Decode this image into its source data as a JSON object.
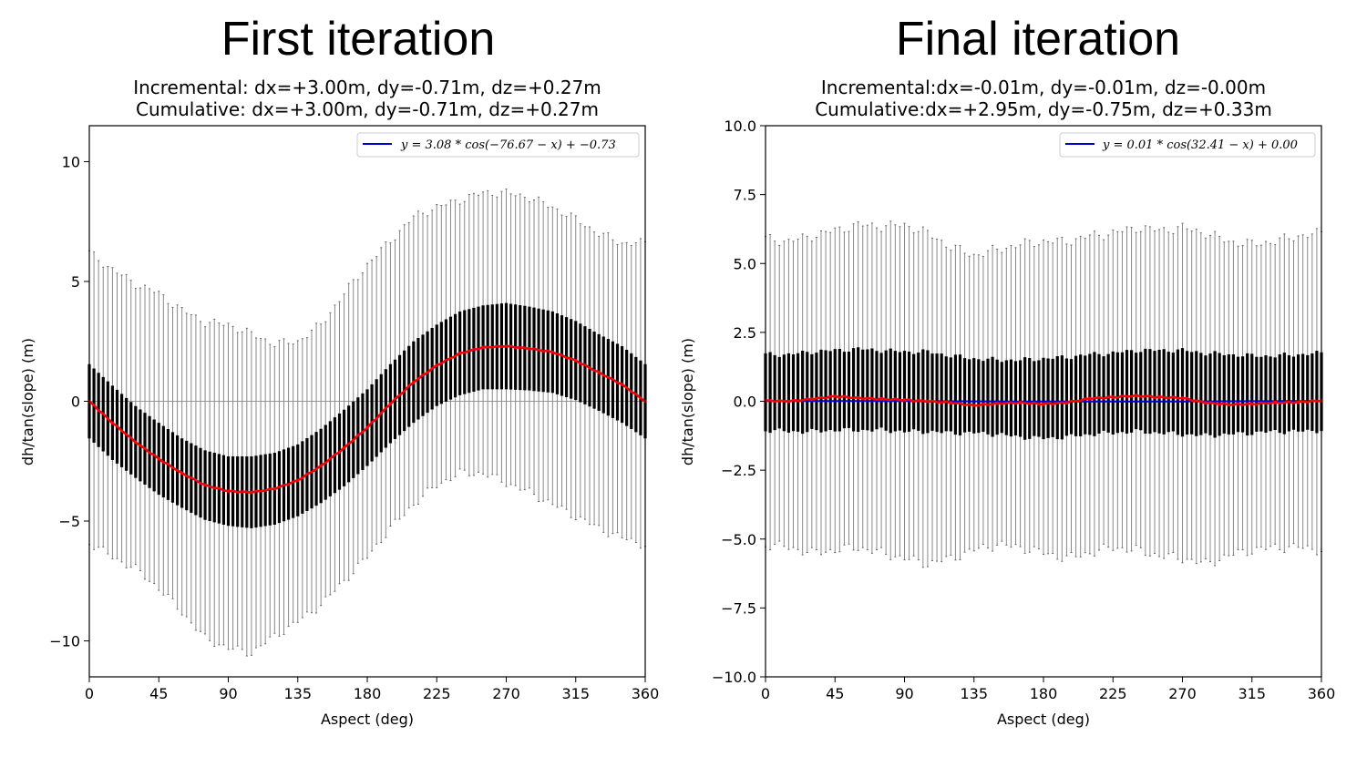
{
  "chart_data": [
    {
      "type": "errorbar-line",
      "title": "First iteration",
      "subtitle_line1": "Incremental: dx=+3.00m, dy=-0.71m, dz=+0.27m",
      "subtitle_line2": "Cumulative: dx=+3.00m, dy=-0.71m, dz=+0.27m",
      "xlabel": "Aspect (deg)",
      "ylabel": "dh/tan(slope) (m)",
      "xlim": [
        0,
        360
      ],
      "ylim": [
        -11.5,
        11.5
      ],
      "xticks": [
        "0",
        "45",
        "90",
        "135",
        "180",
        "225",
        "270",
        "315",
        "360"
      ],
      "yticks": [
        {
          "value": 10,
          "label": "10"
        },
        {
          "value": 5,
          "label": "5"
        },
        {
          "value": 0,
          "label": "0"
        },
        {
          "value": -5,
          "label": "−5"
        },
        {
          "value": -10,
          "label": "−10"
        }
      ],
      "zero_line": true,
      "legend": {
        "position": "upper right",
        "label": "y = 3.08 * cos(−76.67 − x) + −0.73",
        "color": "#0000cc"
      },
      "fit": {
        "amplitude": 3.08,
        "phase": -76.67,
        "offset": -0.73
      },
      "series": [
        {
          "name": "binned median",
          "color": "#ff0000",
          "x": [
            0,
            15,
            30,
            45,
            60,
            75,
            90,
            105,
            120,
            135,
            150,
            165,
            180,
            195,
            210,
            225,
            240,
            255,
            270,
            285,
            300,
            315,
            330,
            345,
            360
          ],
          "values": [
            0.0,
            -0.9,
            -1.7,
            -2.4,
            -3.0,
            -3.5,
            -3.75,
            -3.8,
            -3.65,
            -3.3,
            -2.7,
            -1.95,
            -1.1,
            -0.1,
            0.8,
            1.5,
            2.0,
            2.25,
            2.3,
            2.2,
            2.05,
            1.7,
            1.2,
            0.7,
            0.0
          ]
        },
        {
          "name": "iqr_half",
          "values": [
            1.55,
            1.55,
            1.5,
            1.5,
            1.45,
            1.45,
            1.45,
            1.5,
            1.5,
            1.5,
            1.55,
            1.6,
            1.6,
            1.65,
            1.7,
            1.7,
            1.75,
            1.75,
            1.8,
            1.75,
            1.7,
            1.65,
            1.6,
            1.6,
            1.55
          ]
        },
        {
          "name": "whisker_upper",
          "values": [
            6.2,
            5.5,
            4.9,
            4.5,
            3.8,
            3.3,
            3.2,
            2.8,
            2.4,
            2.5,
            3.2,
            4.5,
            5.7,
            6.7,
            7.7,
            8.1,
            8.4,
            8.7,
            8.7,
            8.5,
            8.1,
            7.6,
            7.0,
            6.6,
            6.6
          ]
        },
        {
          "name": "whisker_lower",
          "values": [
            -5.9,
            -6.5,
            -7.0,
            -7.8,
            -8.8,
            -9.9,
            -10.3,
            -10.5,
            -9.8,
            -9.2,
            -8.5,
            -7.5,
            -6.5,
            -5.3,
            -4.3,
            -3.5,
            -3.0,
            -3.0,
            -3.4,
            -3.8,
            -4.3,
            -4.8,
            -5.3,
            -5.7,
            -6.0
          ]
        }
      ]
    },
    {
      "type": "errorbar-line",
      "title": "Final iteration",
      "subtitle_line1": "Incremental:dx=-0.01m, dy=-0.01m, dz=-0.00m",
      "subtitle_line2": "Cumulative:dx=+2.95m, dy=-0.75m, dz=+0.33m",
      "xlabel": "Aspect (deg)",
      "ylabel": "dh/tan(slope) (m)",
      "xlim": [
        0,
        360
      ],
      "ylim": [
        -10.0,
        10.0
      ],
      "xticks": [
        "0",
        "45",
        "90",
        "135",
        "180",
        "225",
        "270",
        "315",
        "360"
      ],
      "yticks": [
        {
          "value": 10,
          "label": "10.0"
        },
        {
          "value": 7.5,
          "label": "7.5"
        },
        {
          "value": 5,
          "label": "5.0"
        },
        {
          "value": 2.5,
          "label": "2.5"
        },
        {
          "value": 0,
          "label": "0.0"
        },
        {
          "value": -2.5,
          "label": "−2.5"
        },
        {
          "value": -5,
          "label": "−5.0"
        },
        {
          "value": -7.5,
          "label": "−7.5"
        },
        {
          "value": -10,
          "label": "−10.0"
        }
      ],
      "zero_line": false,
      "legend": {
        "position": "upper right",
        "label": "y = 0.01 * cos(32.41 − x) + 0.00",
        "color": "#0000cc"
      },
      "fit": {
        "amplitude": 0.01,
        "phase": 32.41,
        "offset": 0.0
      },
      "series": [
        {
          "name": "binned median",
          "color": "#ff0000",
          "x": [
            0,
            15,
            30,
            45,
            60,
            75,
            90,
            105,
            120,
            135,
            150,
            165,
            180,
            195,
            210,
            225,
            240,
            255,
            270,
            285,
            300,
            315,
            330,
            345,
            360
          ],
          "values": [
            0.02,
            0.0,
            0.08,
            0.18,
            0.12,
            0.08,
            0.05,
            0.0,
            -0.05,
            -0.15,
            -0.08,
            -0.05,
            -0.1,
            -0.05,
            0.1,
            0.15,
            0.2,
            0.15,
            0.12,
            -0.05,
            -0.12,
            -0.1,
            -0.05,
            -0.03,
            0.02
          ]
        },
        {
          "name": "box_upper",
          "values": [
            1.7,
            1.7,
            1.8,
            1.85,
            1.9,
            1.85,
            1.8,
            1.8,
            1.65,
            1.55,
            1.5,
            1.5,
            1.55,
            1.6,
            1.7,
            1.75,
            1.85,
            1.85,
            1.85,
            1.75,
            1.7,
            1.65,
            1.65,
            1.7,
            1.75
          ]
        },
        {
          "name": "box_lower",
          "values": [
            -1.05,
            -1.1,
            -1.1,
            -1.05,
            -1.05,
            -1.05,
            -1.1,
            -1.1,
            -1.15,
            -1.15,
            -1.2,
            -1.3,
            -1.35,
            -1.3,
            -1.2,
            -1.15,
            -1.1,
            -1.15,
            -1.2,
            -1.25,
            -1.2,
            -1.15,
            -1.1,
            -1.1,
            -1.05
          ]
        },
        {
          "name": "whisker_upper",
          "values": [
            5.9,
            5.8,
            6.0,
            6.2,
            6.4,
            6.35,
            6.4,
            6.1,
            5.6,
            5.3,
            5.5,
            5.7,
            5.8,
            5.8,
            6.0,
            6.1,
            6.3,
            6.2,
            6.3,
            6.1,
            5.8,
            5.7,
            5.8,
            6.0,
            6.1
          ]
        },
        {
          "name": "whisker_lower",
          "values": [
            -5.2,
            -5.3,
            -5.5,
            -5.4,
            -5.3,
            -5.5,
            -5.7,
            -5.9,
            -5.7,
            -5.4,
            -5.2,
            -5.3,
            -5.5,
            -5.7,
            -5.5,
            -5.3,
            -5.4,
            -5.6,
            -5.7,
            -5.9,
            -5.6,
            -5.4,
            -5.3,
            -5.3,
            -5.4
          ]
        }
      ]
    }
  ]
}
